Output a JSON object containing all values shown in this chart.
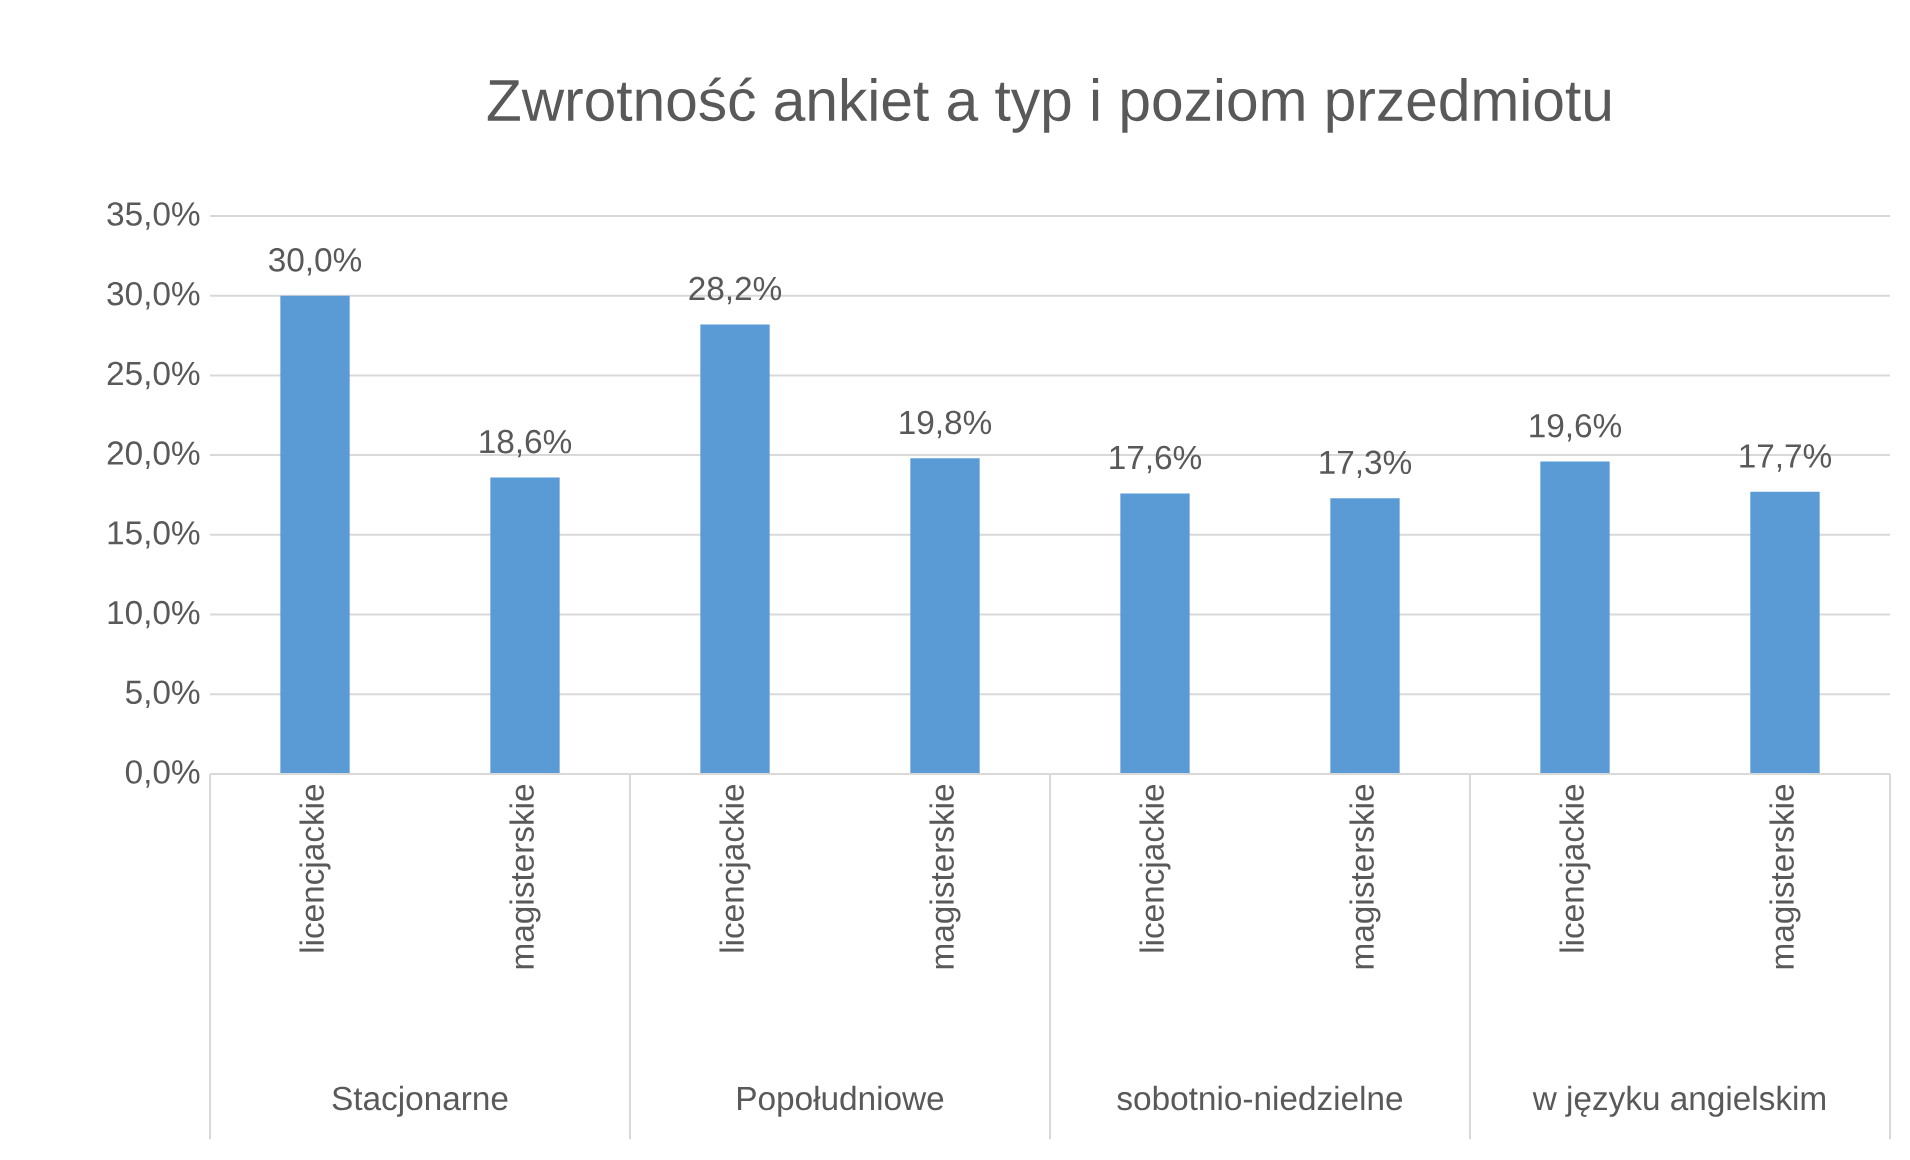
{
  "chart_data": {
    "type": "bar",
    "title": "Zwrotność ankiet a typ i poziom przedmiotu",
    "categories": [
      "licencjackie",
      "magisterskie",
      "licencjackie",
      "magisterskie",
      "licencjackie",
      "magisterskie",
      "licencjackie",
      "magisterskie"
    ],
    "values": [
      30.0,
      18.6,
      28.2,
      19.8,
      17.6,
      17.3,
      19.6,
      17.7
    ],
    "value_labels": [
      "30,0%",
      "18,6%",
      "28,2%",
      "19,8%",
      "17,6%",
      "17,3%",
      "19,6%",
      "17,7%"
    ],
    "color": "#5b9bd5",
    "ylim": [
      0,
      35
    ],
    "yticks": [
      {
        "value": 0,
        "label": "0,0%"
      },
      {
        "value": 5,
        "label": "5,0%"
      },
      {
        "value": 10,
        "label": "10,0%"
      },
      {
        "value": 15,
        "label": "15,0%"
      },
      {
        "value": 20,
        "label": "20,0%"
      },
      {
        "value": 25,
        "label": "25,0%"
      },
      {
        "value": 30,
        "label": "30,0%"
      },
      {
        "value": 35,
        "label": "35,0%"
      }
    ],
    "grid": "y",
    "annotations": [
      "Stacjonarne",
      "Popołudniowe",
      "sobotnio-niedzielne",
      "w języku angielskim"
    ]
  }
}
